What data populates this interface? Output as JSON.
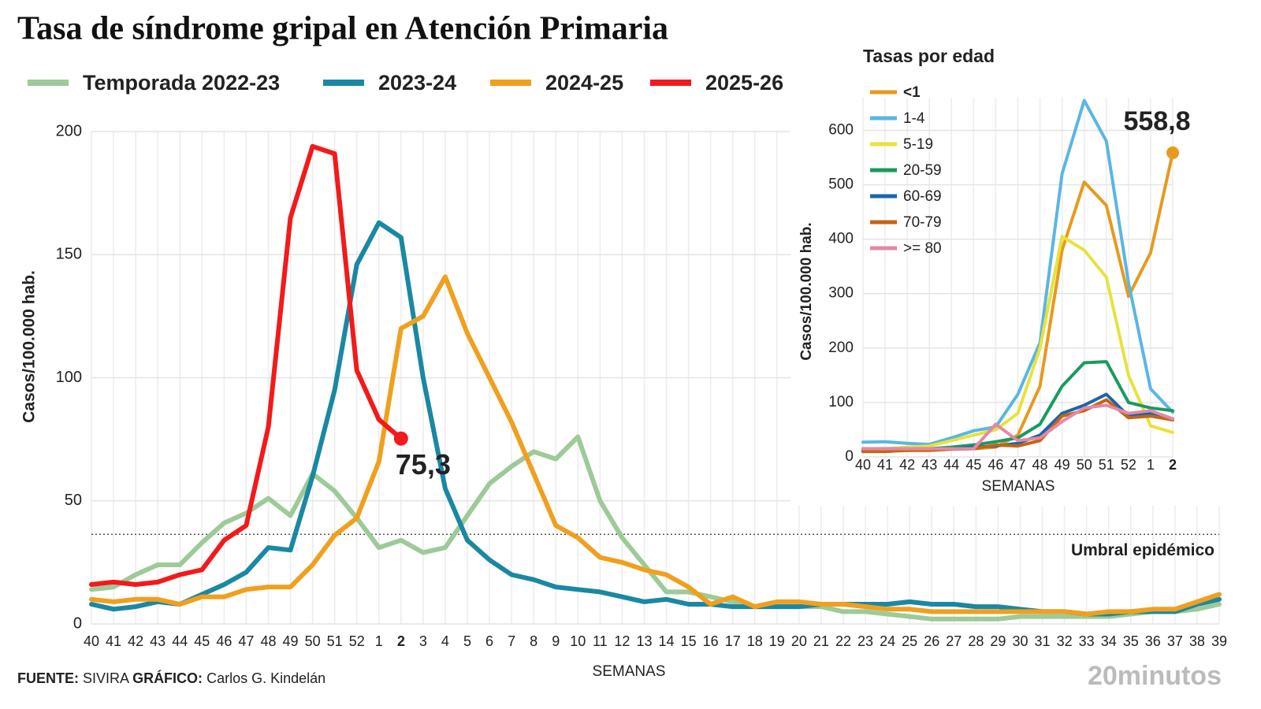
{
  "title": "Tasa de síndrome gripal en Atención Primaria",
  "footer": {
    "source_label": "FUENTE:",
    "source": "SIVIRA",
    "credit_label": "GRÁFICO:",
    "credit": "Carlos G. Kindelán",
    "brand": "20minutos"
  },
  "chart_data": [
    {
      "type": "line",
      "y_label": "Casos/100.000 hab.",
      "x_label": "SEMANAS",
      "categories": [
        "40",
        "41",
        "42",
        "43",
        "44",
        "45",
        "46",
        "47",
        "48",
        "49",
        "50",
        "51",
        "52",
        "1",
        "2",
        "3",
        "4",
        "5",
        "6",
        "7",
        "8",
        "9",
        "10",
        "11",
        "12",
        "13",
        "14",
        "15",
        "16",
        "17",
        "18",
        "19",
        "20",
        "21",
        "22",
        "23",
        "24",
        "25",
        "26",
        "27",
        "28",
        "29",
        "30",
        "31",
        "32",
        "33",
        "34",
        "35",
        "36",
        "37",
        "38",
        "39"
      ],
      "ylim": [
        0,
        200
      ],
      "yticks": [
        0,
        50,
        100,
        150,
        200
      ],
      "grid": true,
      "threshold": {
        "value": 36.4,
        "label": "Umbral epidémico"
      },
      "series": [
        {
          "name": "Temporada 2022-23",
          "color": "#9dca98",
          "values": [
            14,
            15,
            20,
            24,
            24,
            33,
            41,
            45,
            51,
            44,
            61,
            54,
            43,
            31,
            34,
            29,
            31,
            44,
            57,
            64,
            70,
            67,
            76,
            50,
            35,
            24,
            13,
            13,
            11,
            9,
            7,
            7,
            7,
            7,
            5,
            5,
            4,
            3,
            2,
            2,
            2,
            2,
            3,
            3,
            3,
            3,
            3,
            4,
            5,
            5,
            6,
            8
          ]
        },
        {
          "name": "2023-24",
          "color": "#1a88a3",
          "values": [
            8,
            6,
            7,
            9,
            8,
            12,
            16,
            21,
            31,
            30,
            60,
            95,
            146,
            163,
            157,
            100,
            55,
            34,
            26,
            20,
            18,
            15,
            14,
            13,
            11,
            9,
            10,
            8,
            8,
            7,
            7,
            7,
            7,
            8,
            8,
            8,
            8,
            9,
            8,
            8,
            7,
            7,
            6,
            5,
            5,
            4,
            4,
            5,
            5,
            5,
            8,
            10
          ]
        },
        {
          "name": "2024-25",
          "color": "#f0a01e",
          "values": [
            10,
            9,
            10,
            10,
            8,
            11,
            11,
            14,
            15,
            15,
            24,
            36,
            43,
            66,
            120,
            125,
            141,
            118,
            100,
            82,
            61,
            40,
            35,
            27,
            25,
            22,
            20,
            15,
            8,
            11,
            7,
            9,
            9,
            8,
            8,
            7,
            6,
            6,
            5,
            5,
            5,
            5,
            5,
            5,
            5,
            4,
            5,
            5,
            6,
            6,
            9,
            12
          ]
        },
        {
          "name": "2025-26",
          "color": "#f21a1a",
          "values": [
            16,
            17,
            16,
            17,
            20,
            22,
            34,
            40,
            80,
            165,
            194,
            191,
            103,
            83,
            75.3,
            null,
            null,
            null,
            null,
            null,
            null,
            null,
            null,
            null,
            null,
            null,
            null,
            null,
            null,
            null,
            null,
            null,
            null,
            null,
            null,
            null,
            null,
            null,
            null,
            null,
            null,
            null,
            null,
            null,
            null,
            null,
            null,
            null,
            null,
            null,
            null,
            null
          ],
          "value_labels": [
            null,
            null,
            null,
            null,
            null,
            null,
            null,
            null,
            null,
            null,
            null,
            null,
            null,
            null,
            "75,3",
            null,
            null,
            null,
            null,
            null,
            null,
            null,
            null,
            null,
            null,
            null,
            null,
            null,
            null,
            null,
            null,
            null,
            null,
            null,
            null,
            null,
            null,
            null,
            null,
            null,
            null,
            null,
            null,
            null,
            null,
            null,
            null,
            null,
            null,
            null,
            null,
            null
          ]
        }
      ]
    },
    {
      "type": "line",
      "title": "Tasas por edad",
      "y_label": "Casos/100.000 hab.",
      "x_label": "SEMANAS",
      "categories": [
        "40",
        "41",
        "42",
        "43",
        "44",
        "45",
        "46",
        "47",
        "48",
        "49",
        "50",
        "51",
        "52",
        "1",
        "2"
      ],
      "ylim": [
        0,
        660
      ],
      "yticks": [
        0,
        100,
        200,
        300,
        400,
        500,
        600
      ],
      "grid": true,
      "series": [
        {
          "name": "<1",
          "color": "#e69a1e",
          "values": [
            10,
            10,
            12,
            15,
            15,
            15,
            18,
            40,
            130,
            380,
            505,
            462,
            295,
            375,
            558.8
          ],
          "value_labels": [
            null,
            null,
            null,
            null,
            null,
            null,
            null,
            null,
            null,
            null,
            null,
            null,
            null,
            null,
            "558,8"
          ]
        },
        {
          "name": "1-4",
          "color": "#5ab6e2",
          "values": [
            27,
            28,
            25,
            23,
            35,
            48,
            55,
            115,
            210,
            520,
            655,
            580,
            320,
            125,
            82
          ]
        },
        {
          "name": "5-19",
          "color": "#e8e23c",
          "values": [
            15,
            15,
            18,
            20,
            30,
            40,
            50,
            80,
            200,
            405,
            380,
            330,
            150,
            57,
            45
          ]
        },
        {
          "name": "20-59",
          "color": "#1a9a5e",
          "values": [
            15,
            15,
            15,
            15,
            18,
            22,
            28,
            35,
            60,
            130,
            173,
            175,
            100,
            90,
            85
          ]
        },
        {
          "name": "60-69",
          "color": "#1a66aa",
          "values": [
            12,
            12,
            14,
            14,
            15,
            18,
            20,
            25,
            40,
            80,
            95,
            115,
            75,
            80,
            70
          ]
        },
        {
          "name": "70-79",
          "color": "#c46512",
          "values": [
            10,
            10,
            12,
            12,
            14,
            15,
            22,
            20,
            30,
            75,
            85,
            105,
            72,
            75,
            68
          ]
        },
        {
          "name": ">= 80",
          "color": "#e488a8",
          "values": [
            15,
            15,
            15,
            15,
            15,
            15,
            60,
            30,
            35,
            65,
            90,
            95,
            80,
            85,
            70
          ]
        }
      ]
    }
  ]
}
